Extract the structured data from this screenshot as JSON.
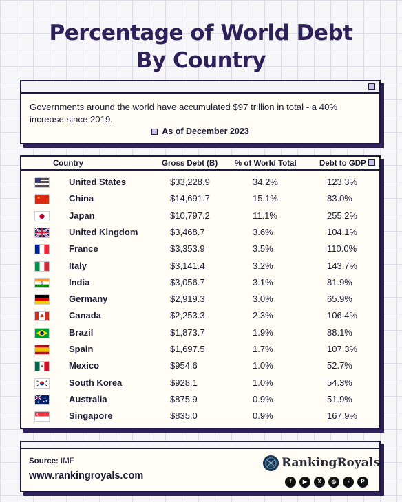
{
  "title_line1": "Percentage of  World Debt",
  "title_line2": "By Country",
  "intro": {
    "text": "Governments around the world have accumulated $97 trillion in total - a 40% increase since 2019.",
    "as_of": "As of December 2023"
  },
  "table": {
    "headers": {
      "country": "Country",
      "debt": "Gross Debt (B)",
      "pct": "% of World Total",
      "gdp": "Debt to GDP"
    },
    "rows": [
      {
        "country": "United States",
        "debt": "$33,228.9",
        "pct": "34.2%",
        "gdp": "123.3%",
        "flag": "us-flag-icon"
      },
      {
        "country": "China",
        "debt": "$14,691.7",
        "pct": "15.1%",
        "gdp": "83.0%",
        "flag": "china-flag-icon"
      },
      {
        "country": "Japan",
        "debt": "$10,797.2",
        "pct": "11.1%",
        "gdp": "255.2%",
        "flag": "japan-flag-icon"
      },
      {
        "country": "United Kingdom",
        "debt": "$3,468.7",
        "pct": "3.6%",
        "gdp": "104.1%",
        "flag": "uk-flag-icon"
      },
      {
        "country": "France",
        "debt": "$3,353.9",
        "pct": "3.5%",
        "gdp": "110.0%",
        "flag": "france-flag-icon"
      },
      {
        "country": "Italy",
        "debt": "$3,141.4",
        "pct": "3.2%",
        "gdp": "143.7%",
        "flag": "italy-flag-icon"
      },
      {
        "country": "India",
        "debt": "$3,056.7",
        "pct": "3.1%",
        "gdp": "81.9%",
        "flag": "india-flag-icon"
      },
      {
        "country": "Germany",
        "debt": "$2,919.3",
        "pct": "3.0%",
        "gdp": "65.9%",
        "flag": "germany-flag-icon"
      },
      {
        "country": "Canada",
        "debt": "$2,253.3",
        "pct": "2.3%",
        "gdp": "106.4%",
        "flag": "canada-flag-icon"
      },
      {
        "country": "Brazil",
        "debt": "$1,873.7",
        "pct": "1.9%",
        "gdp": "88.1%",
        "flag": "brazil-flag-icon"
      },
      {
        "country": "Spain",
        "debt": "$1,697.5",
        "pct": "1.7%",
        "gdp": "107.3%",
        "flag": "spain-flag-icon"
      },
      {
        "country": "Mexico",
        "debt": "$954.6",
        "pct": "1.0%",
        "gdp": "52.7%",
        "flag": "mexico-flag-icon"
      },
      {
        "country": "South Korea",
        "debt": "$928.1",
        "pct": "1.0%",
        "gdp": "54.3%",
        "flag": "south-korea-flag-icon"
      },
      {
        "country": "Australia",
        "debt": "$875.9",
        "pct": "0.9%",
        "gdp": "51.9%",
        "flag": "australia-flag-icon"
      },
      {
        "country": "Singapore",
        "debt": "$835.0",
        "pct": "0.9%",
        "gdp": "167.9%",
        "flag": "singapore-flag-icon"
      }
    ]
  },
  "footer": {
    "source_label": "Source:",
    "source_value": "IMF",
    "website": "www.rankingroyals.com",
    "brand": "RankingRoyals",
    "socials": [
      "facebook-icon",
      "youtube-icon",
      "x-icon",
      "instagram-icon",
      "tiktok-icon",
      "pinterest-icon"
    ]
  },
  "colors": {
    "title": "#2e2059",
    "accent_square": "#c9c3e6",
    "card_bg": "#fffdf6",
    "border": "#1e1a3c"
  }
}
